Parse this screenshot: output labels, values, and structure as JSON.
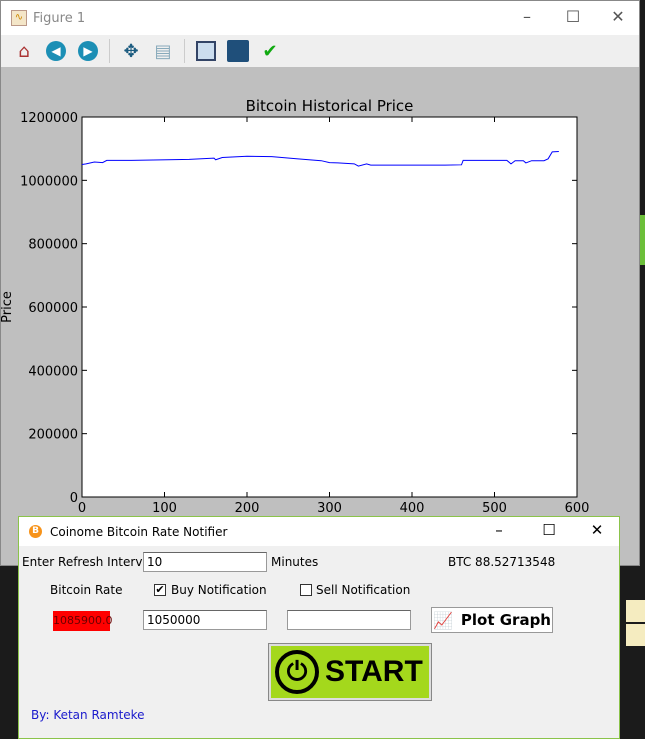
{
  "figure_window": {
    "title": "Figure 1",
    "toolbar": [
      "home-icon",
      "back-icon",
      "forward-icon",
      "pan-icon",
      "zoom-icon",
      "subplots-icon",
      "save-icon",
      "edit-check-icon"
    ]
  },
  "chart_data": {
    "type": "line",
    "title": "Bitcoin Historical Price",
    "xlabel": "",
    "ylabel": "Price",
    "xlim": [
      0,
      600
    ],
    "ylim": [
      0,
      1200000
    ],
    "xticks": [
      "0",
      "100",
      "200",
      "300",
      "400",
      "500",
      "600"
    ],
    "yticks": [
      "0",
      "200000",
      "400000",
      "600000",
      "800000",
      "1000000",
      "1200000"
    ],
    "color": "#0000ff",
    "x": [
      0,
      5,
      15,
      25,
      30,
      60,
      130,
      160,
      162,
      170,
      200,
      230,
      260,
      290,
      300,
      310,
      330,
      335,
      345,
      350,
      400,
      440,
      460,
      462,
      500,
      515,
      520,
      525,
      535,
      538,
      545,
      560,
      565,
      570,
      578
    ],
    "y": [
      1050000,
      1052000,
      1058000,
      1056000,
      1063000,
      1063000,
      1066000,
      1070000,
      1065000,
      1072000,
      1076000,
      1075000,
      1068000,
      1062000,
      1056000,
      1055000,
      1052000,
      1045000,
      1052000,
      1048000,
      1048000,
      1048000,
      1049000,
      1063000,
      1063000,
      1063000,
      1052000,
      1062000,
      1062000,
      1055000,
      1062000,
      1062000,
      1068000,
      1090000,
      1091000
    ]
  },
  "notifier": {
    "title": "Coinome Bitcoin Rate Notifier",
    "refresh_label": "Enter Refresh Interval:",
    "refresh_value": "10",
    "minutes_label": "Minutes",
    "btc_balance": "BTC 88.52713548",
    "bitcoin_rate_label": "Bitcoin Rate",
    "buy_label": "Buy Notification",
    "buy_checked": true,
    "sell_label": "Sell Notification",
    "sell_checked": false,
    "rate_value": "1085900.0",
    "rate_color": "#ff0000",
    "buy_value": "1050000",
    "sell_value": "",
    "plot_label": "Plot Graph",
    "start_label": "START",
    "start_color": "#a4d81c",
    "author": "By: Ketan Ramteke"
  }
}
